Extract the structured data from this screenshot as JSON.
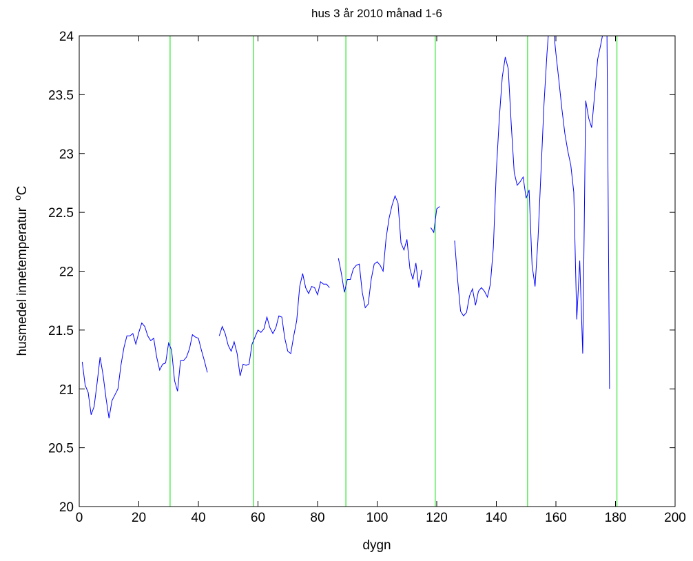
{
  "chart_data": {
    "type": "line",
    "title": "hus 3  år 2010  månad 1-6",
    "xlabel": "dygn",
    "ylabel": "husmedel innetemperatur",
    "ylabel_unit_sup": "o",
    "ylabel_unit": "C",
    "xlim": [
      0,
      200
    ],
    "ylim": [
      20,
      24
    ],
    "xticks": [
      0,
      20,
      40,
      60,
      80,
      100,
      120,
      140,
      160,
      180,
      200
    ],
    "yticks": [
      20,
      20.5,
      21,
      21.5,
      22,
      22.5,
      23,
      23.5,
      24
    ],
    "grid": false,
    "vlines": {
      "color": "#00e000",
      "x": [
        30.5,
        58.5,
        89.5,
        119.5,
        150.5,
        180.5
      ]
    },
    "x": [
      1,
      2,
      3,
      4,
      5,
      6,
      7,
      8,
      9,
      10,
      11,
      12,
      13,
      14,
      15,
      16,
      17,
      18,
      19,
      20,
      21,
      22,
      23,
      24,
      25,
      26,
      27,
      28,
      29,
      30,
      31,
      32,
      33,
      34,
      35,
      36,
      37,
      38,
      39,
      40,
      41,
      42,
      43,
      44,
      45,
      46,
      47,
      48,
      49,
      50,
      51,
      52,
      53,
      54,
      55,
      56,
      57,
      58,
      59,
      60,
      61,
      62,
      63,
      64,
      65,
      66,
      67,
      68,
      69,
      70,
      71,
      72,
      73,
      74,
      75,
      76,
      77,
      78,
      79,
      80,
      81,
      82,
      83,
      84,
      85,
      86,
      87,
      88,
      89,
      90,
      91,
      92,
      93,
      94,
      95,
      96,
      97,
      98,
      99,
      100,
      101,
      102,
      103,
      104,
      105,
      106,
      107,
      108,
      109,
      110,
      111,
      112,
      113,
      114,
      115,
      116,
      117,
      118,
      119,
      120,
      121,
      122,
      123,
      124,
      125,
      126,
      127,
      128,
      129,
      130,
      131,
      132,
      133,
      134,
      135,
      136,
      137,
      138,
      139,
      140,
      141,
      142,
      143,
      144,
      145,
      146,
      147,
      148,
      149,
      150,
      151,
      152,
      153,
      154,
      155,
      156,
      157,
      158,
      159,
      160,
      161,
      162,
      163,
      164,
      165,
      166,
      167,
      168,
      169,
      170,
      171,
      172,
      173,
      174,
      175,
      176,
      177,
      178
    ],
    "series": [
      {
        "color": "#0000ff",
        "values": [
          21.23,
          21.03,
          20.97,
          20.78,
          20.85,
          21.05,
          21.27,
          21.12,
          20.92,
          20.75,
          20.9,
          20.95,
          21.0,
          21.2,
          21.35,
          21.45,
          21.45,
          21.47,
          21.38,
          21.48,
          21.56,
          21.53,
          21.45,
          21.41,
          21.43,
          21.27,
          21.16,
          21.21,
          21.22,
          21.39,
          21.33,
          21.07,
          20.98,
          21.24,
          21.24,
          21.27,
          21.34,
          21.46,
          21.44,
          21.43,
          21.33,
          21.24,
          21.14,
          null,
          null,
          null,
          21.45,
          21.53,
          21.47,
          21.37,
          21.32,
          21.4,
          21.3,
          21.11,
          21.21,
          21.2,
          21.21,
          21.38,
          21.44,
          21.5,
          21.48,
          21.51,
          21.61,
          21.52,
          21.47,
          21.52,
          21.62,
          21.61,
          21.43,
          21.32,
          21.3,
          21.45,
          21.58,
          21.87,
          21.98,
          21.86,
          21.81,
          21.87,
          21.86,
          21.8,
          21.91,
          21.89,
          21.89,
          21.86,
          null,
          null,
          22.11,
          21.98,
          21.82,
          21.93,
          21.93,
          22.02,
          22.05,
          22.06,
          21.82,
          21.69,
          21.72,
          21.93,
          22.06,
          22.08,
          22.05,
          22.0,
          22.28,
          22.45,
          22.56,
          22.64,
          22.58,
          22.24,
          22.18,
          22.27,
          22.02,
          21.93,
          22.07,
          21.86,
          22.01,
          null,
          null,
          22.37,
          22.33,
          22.53,
          22.55,
          null,
          null,
          null,
          null,
          22.26,
          21.93,
          21.66,
          21.62,
          21.65,
          21.79,
          21.85,
          21.71,
          21.83,
          21.86,
          21.83,
          21.78,
          21.89,
          22.2,
          22.85,
          23.3,
          23.65,
          23.82,
          23.72,
          23.25,
          22.84,
          22.73,
          22.76,
          22.8,
          22.62,
          22.69,
          22.05,
          21.87,
          22.28,
          22.85,
          23.42,
          23.85,
          24.2,
          24.1,
          23.85,
          23.62,
          23.38,
          23.17,
          23.02,
          22.9,
          22.67,
          21.59,
          22.09,
          21.3,
          23.45,
          23.3,
          23.22,
          23.5,
          23.8,
          23.92,
          24.05,
          24.5,
          21.0
        ]
      }
    ]
  }
}
